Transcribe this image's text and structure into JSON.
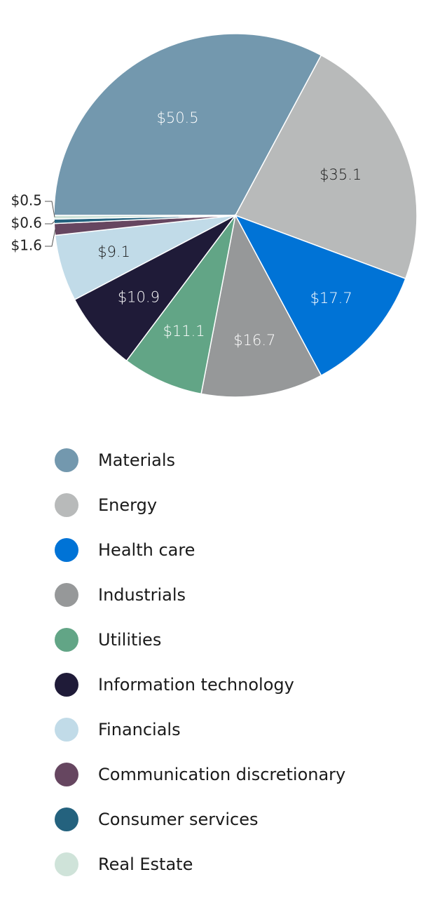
{
  "chart_data": {
    "type": "pie",
    "series": [
      {
        "label": "Materials",
        "value": 50.5,
        "value_label": "$50.5",
        "color": "#7398ae"
      },
      {
        "label": "Energy",
        "value": 35.1,
        "value_label": "$35.1",
        "color": "#b8baba"
      },
      {
        "label": "Health care",
        "value": 17.7,
        "value_label": "$17.7",
        "color": "#0073d6"
      },
      {
        "label": "Industrials",
        "value": 16.7,
        "value_label": "$16.7",
        "color": "#969899"
      },
      {
        "label": "Utilities",
        "value": 11.1,
        "value_label": "$11.1",
        "color": "#62a586"
      },
      {
        "label": "Information technology",
        "value": 10.9,
        "value_label": "$10.9",
        "color": "#1f1b38"
      },
      {
        "label": "Financials",
        "value": 9.1,
        "value_label": "$9.1",
        "color": "#c1dbe8"
      },
      {
        "label": "Communication discretionary",
        "value": 1.6,
        "value_label": "$1.6",
        "color": "#664660"
      },
      {
        "label": "Consumer services",
        "value": 0.6,
        "value_label": "$0.6",
        "color": "#24627e"
      },
      {
        "label": "Real Estate",
        "value": 0.5,
        "value_label": "$0.5",
        "color": "#cfe3d9"
      }
    ],
    "start_angle": "9 o'clock, clockwise",
    "legend_position": "bottom"
  }
}
